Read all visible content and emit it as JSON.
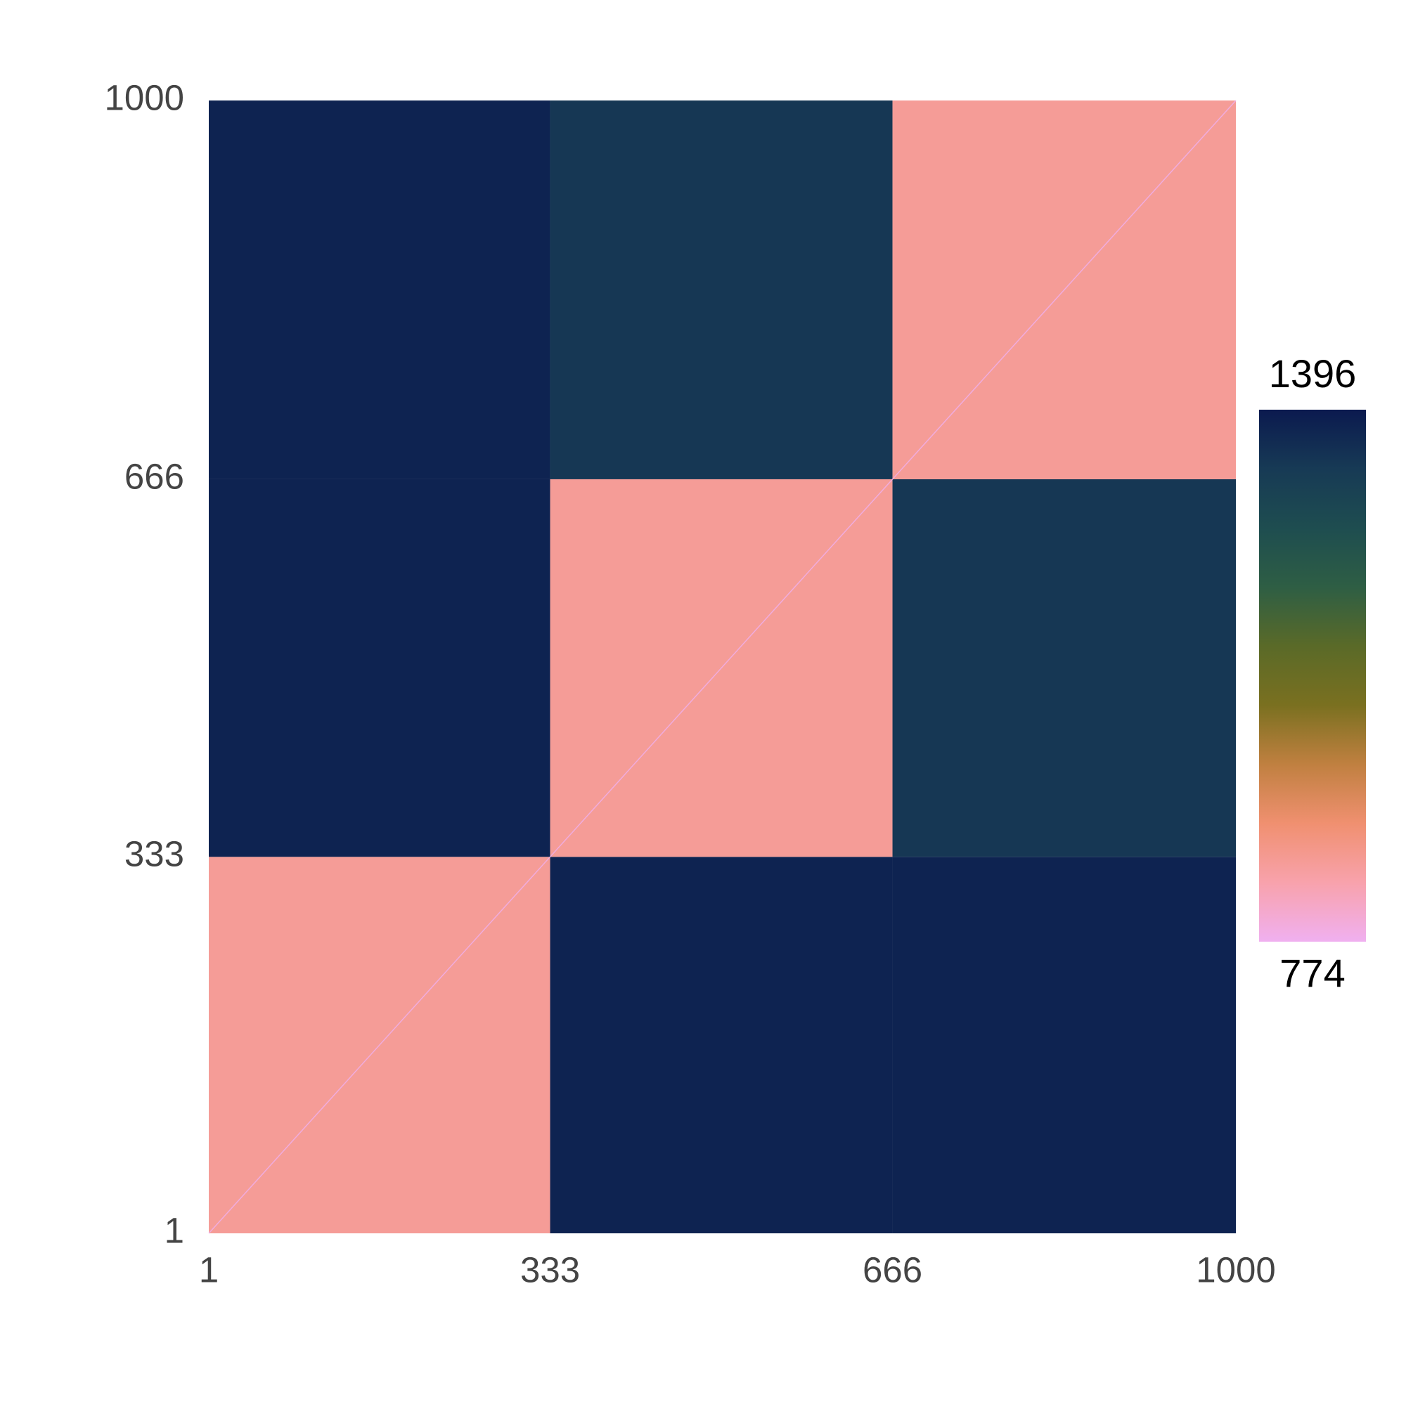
{
  "chart_data": {
    "type": "heatmap",
    "x_edges": [
      1,
      333,
      666,
      1000
    ],
    "y_edges": [
      1,
      333,
      666,
      1000
    ],
    "z": [
      [
        867,
        1377,
        1377
      ],
      [
        1377,
        867,
        1334
      ],
      [
        1377,
        1334,
        867
      ]
    ],
    "xlim": [
      1,
      1000
    ],
    "ylim": [
      1,
      1000
    ],
    "xticks": [
      1,
      333,
      666,
      1000
    ],
    "yticks": [
      1,
      333,
      666,
      1000
    ],
    "zlim": [
      774,
      1396
    ],
    "colorbar_labels": [
      "1396",
      "774"
    ],
    "colormap": [
      "#f0b0f0",
      "#f8a2ac",
      "#f09070",
      "#c08040",
      "#7a7020",
      "#5a6a28",
      "#2e5e44",
      "#1e4d50",
      "#173a55",
      "#0b1a4f"
    ],
    "diagonal": true
  }
}
